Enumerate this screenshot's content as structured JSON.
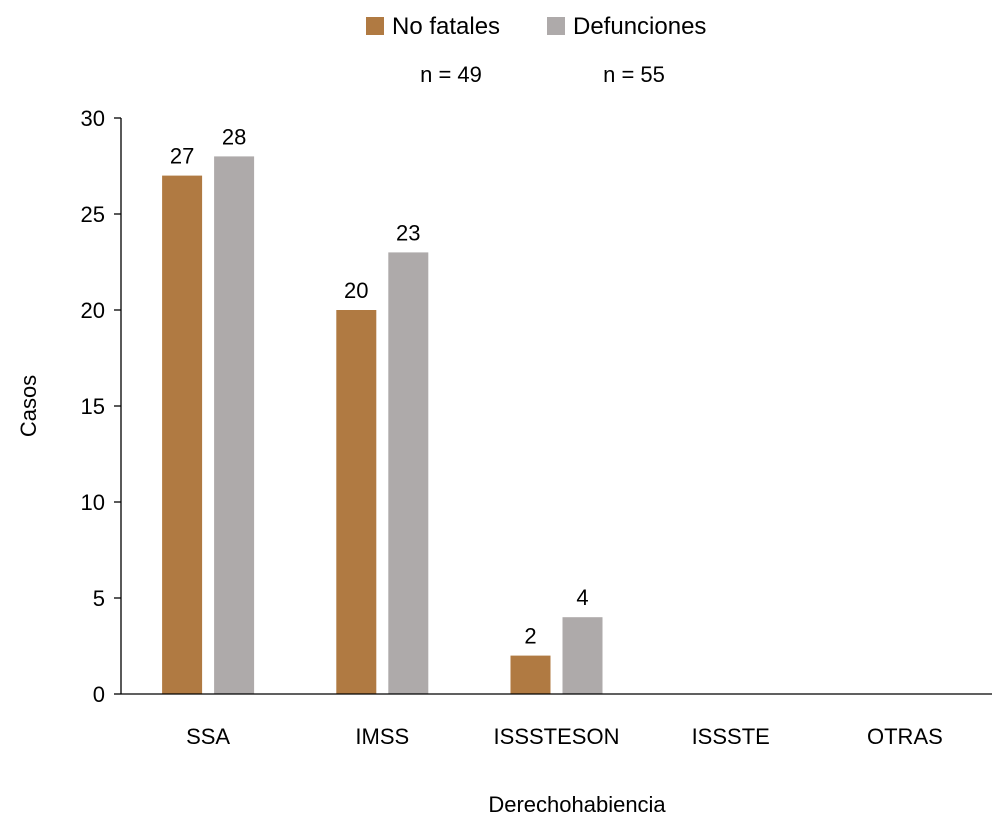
{
  "chart_data": {
    "type": "bar",
    "categories": [
      "SSA",
      "IMSS",
      "ISSSTESON",
      "ISSSTE",
      "OTRAS"
    ],
    "series": [
      {
        "name": "No fatales",
        "values": [
          27,
          20,
          2,
          0,
          0
        ],
        "labels": [
          "27",
          "20",
          "2",
          "",
          ""
        ],
        "color": "#B07A42"
      },
      {
        "name": "Defunciones",
        "values": [
          28,
          23,
          4,
          0,
          0
        ],
        "labels": [
          "28",
          "23",
          "4",
          "",
          ""
        ],
        "color": "#AEAAAA"
      }
    ],
    "legend_notes": [
      "n = 49",
      "n = 55"
    ],
    "xlabel": "Derechohabiencia",
    "ylabel": "Casos",
    "ylim": [
      0,
      30
    ],
    "yticks": [
      0,
      5,
      10,
      15,
      20,
      25,
      30
    ],
    "grid": false,
    "legend_position": "top"
  }
}
